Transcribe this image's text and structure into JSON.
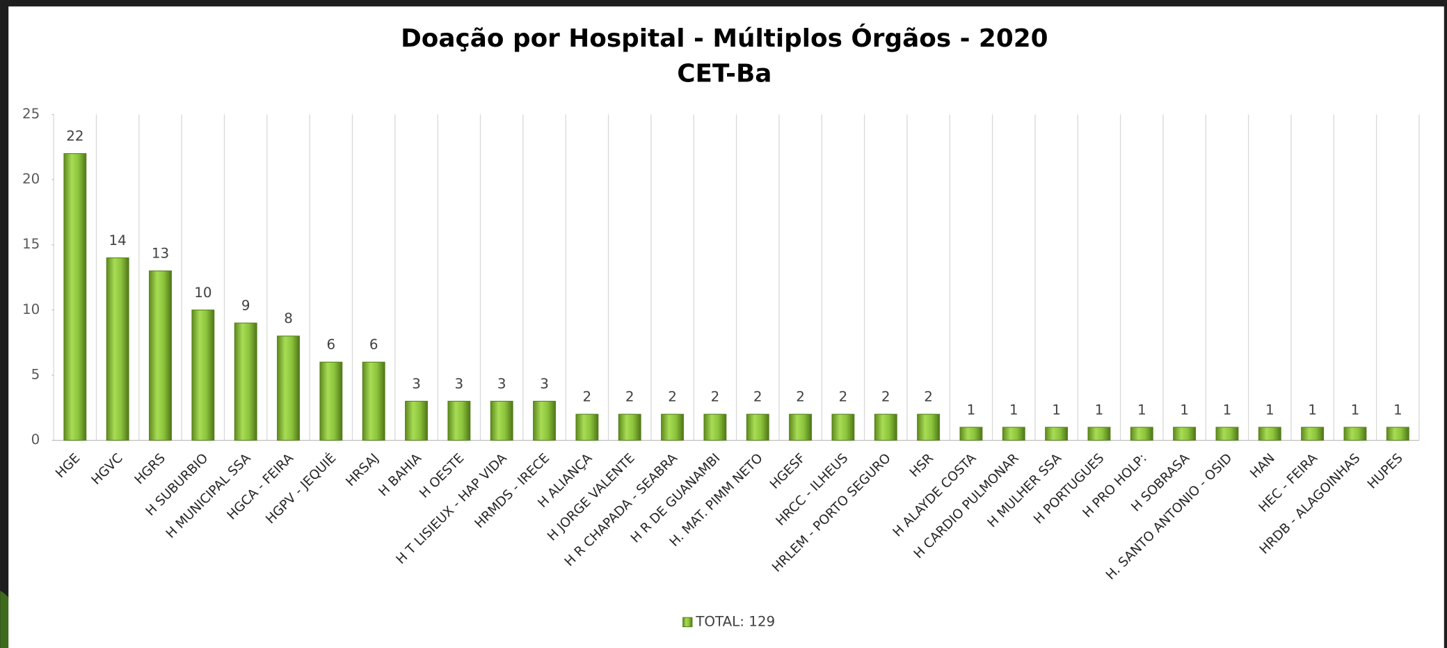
{
  "chart_data": {
    "type": "bar",
    "title": "Doação por Hospital - Múltiplos Órgãos - 2020",
    "subtitle": "CET-Ba",
    "categories": [
      "HGE",
      "HGVC",
      "HGRS",
      "H SUBURBIO",
      "H MUNICIPAL SSA",
      "HGCA - FEIRA",
      "HGPV - JEQUIÉ",
      "HRSAJ",
      "H BAHIA",
      "H OESTE",
      "H T LISIEUX - HAP VIDA",
      "HRMDS - IRECE",
      "H ALIANÇA",
      "H JORGE VALENTE",
      "H R CHAPADA - SEABRA",
      "H R DE GUANAMBI",
      "H. MAT. PIMM NETO",
      "HGESF",
      "HRCC - ILHEUS",
      "HRLEM - PORTO SEGURO",
      "HSR",
      "H ALAYDE COSTA",
      "H CARDIO PULMONAR",
      "H MULHER SSA",
      "H PORTUGUES",
      "H PRO HOLP:",
      "H SOBRASA",
      "H. SANTO ANTONIO - OSID",
      "HAN",
      "HEC - FEIRA",
      "HRDB - ALAGOINHAS",
      "HUPES"
    ],
    "series": [
      {
        "name": "TOTAL: 129",
        "color": "#8cc43c",
        "values": [
          22,
          14,
          13,
          10,
          9,
          8,
          6,
          6,
          3,
          3,
          3,
          3,
          2,
          2,
          2,
          2,
          2,
          2,
          2,
          2,
          2,
          1,
          1,
          1,
          1,
          1,
          1,
          1,
          1,
          1,
          1,
          1
        ]
      }
    ],
    "ylim": [
      0,
      25
    ],
    "yticks": [
      0,
      5,
      10,
      15,
      20,
      25
    ],
    "legend": "bottom"
  }
}
